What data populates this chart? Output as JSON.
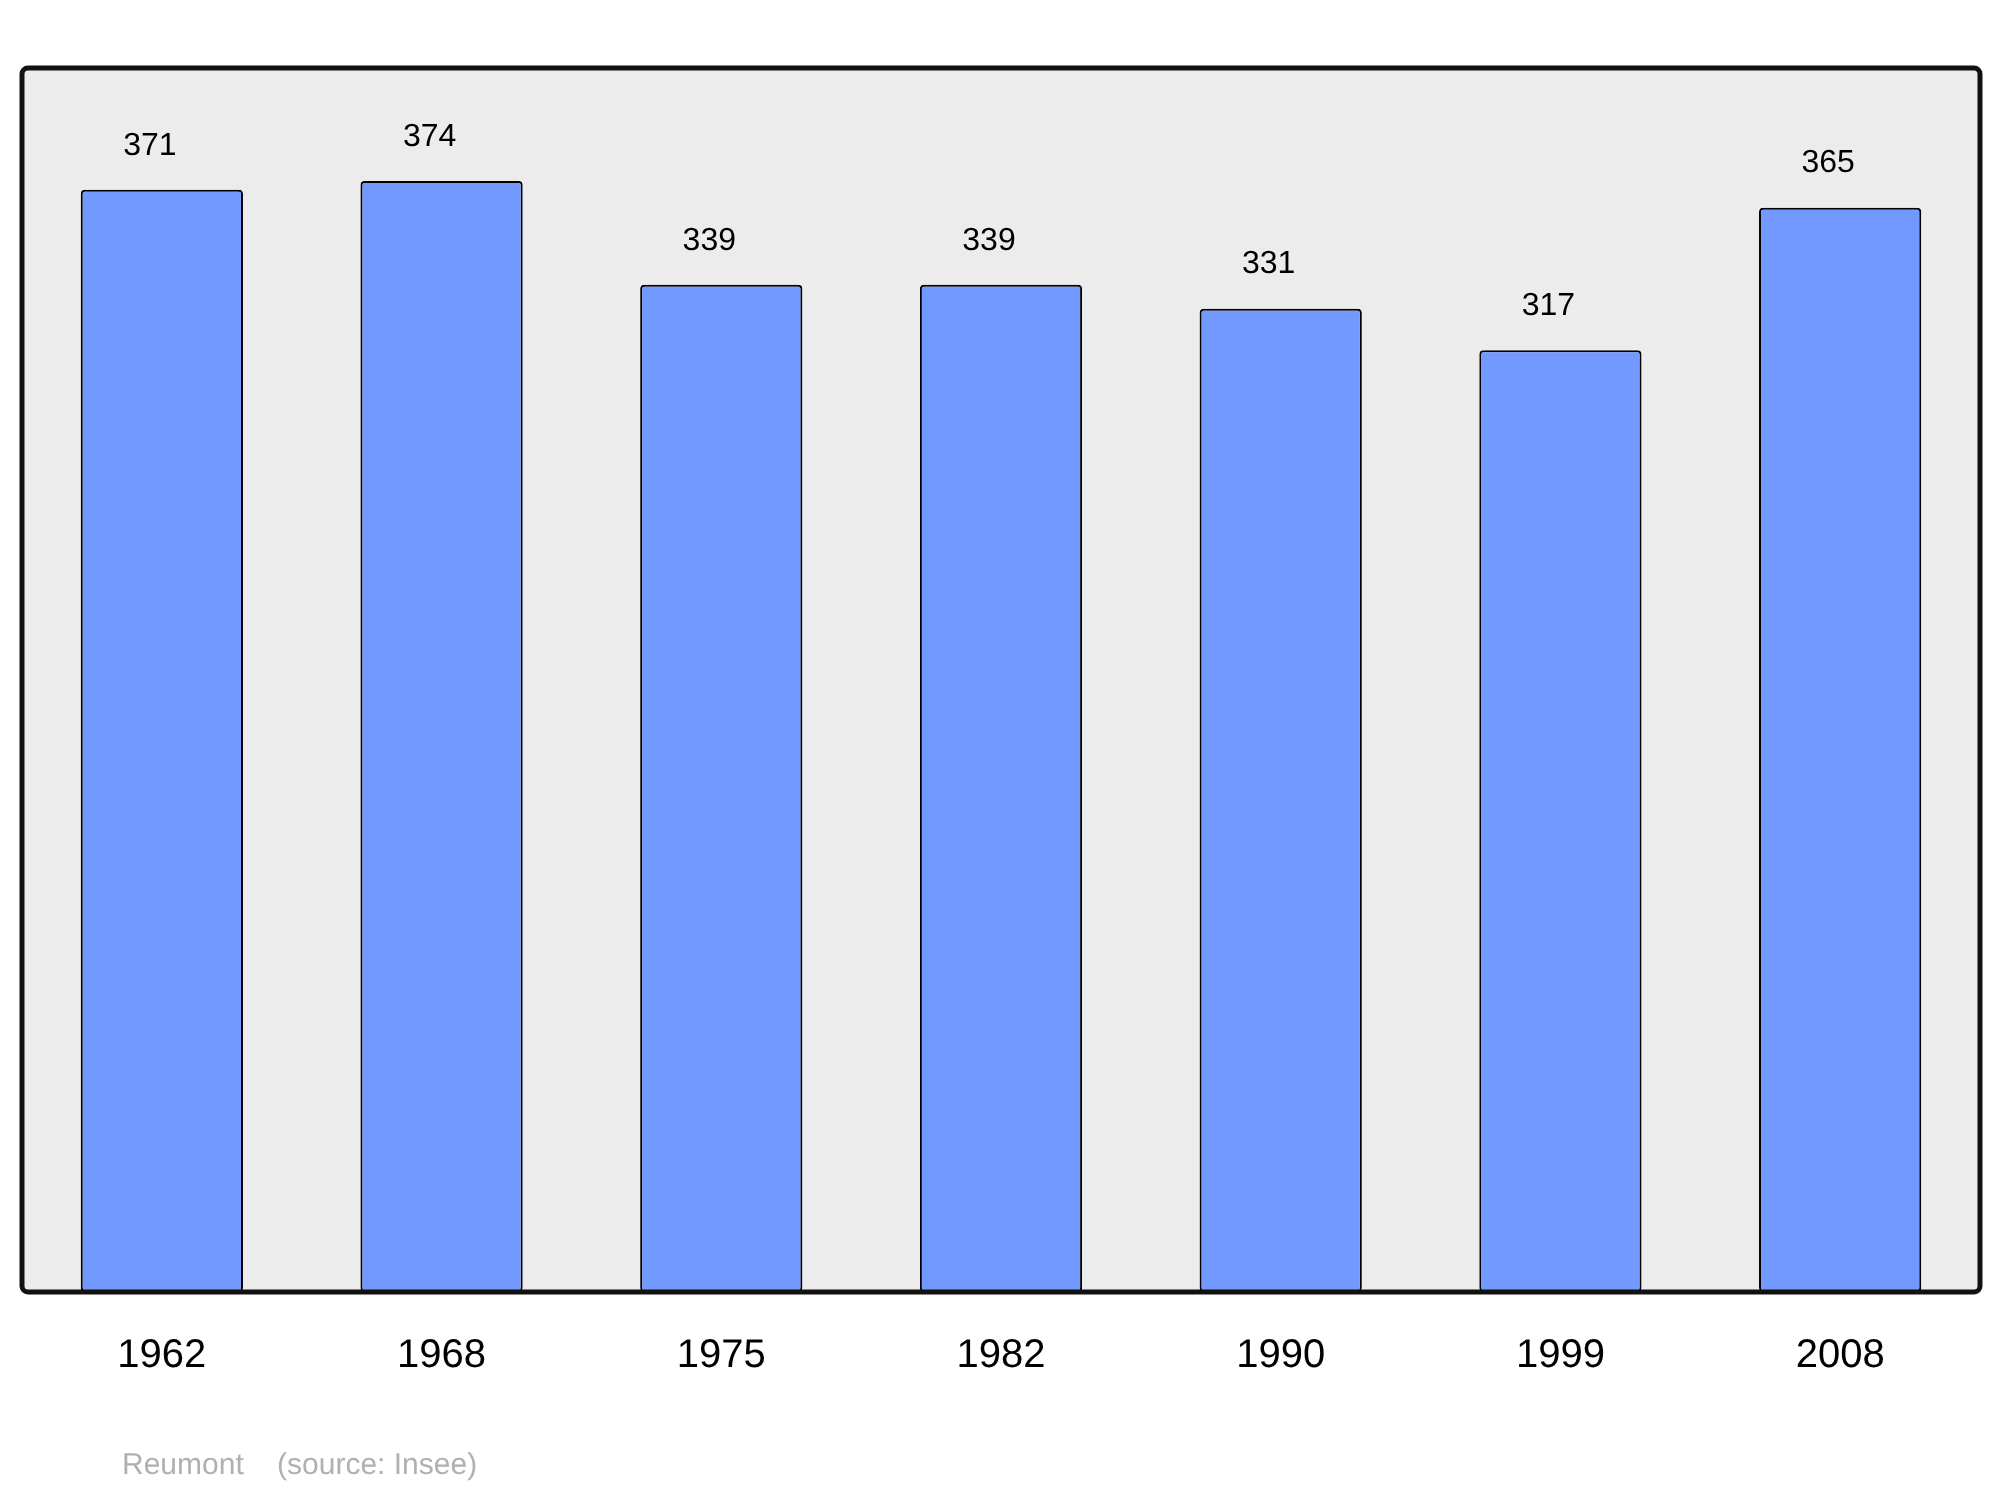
{
  "chart_data": {
    "type": "bar",
    "categories": [
      "1962",
      "1968",
      "1975",
      "1982",
      "1990",
      "1999",
      "2008"
    ],
    "values": [
      371,
      374,
      339,
      339,
      331,
      317,
      365
    ],
    "color": "#7299ff",
    "ylim": [
      0,
      412
    ],
    "data_labels": true,
    "annotations": [
      "Reumont    (source: Insee)"
    ]
  }
}
